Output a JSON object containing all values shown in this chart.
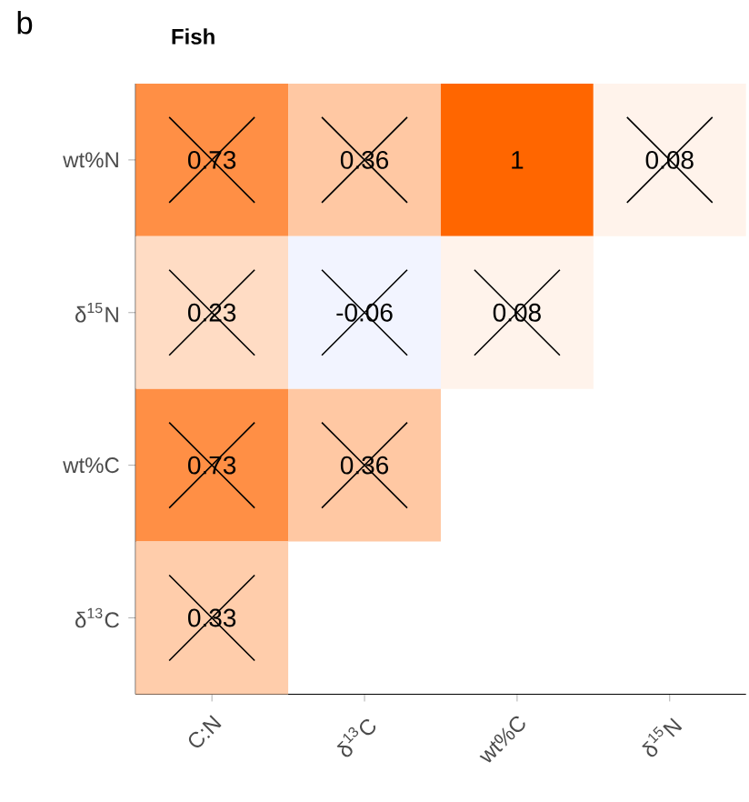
{
  "chart_data": {
    "type": "heatmap",
    "title": "Fish",
    "annotations": [
      "b"
    ],
    "categories": [
      "C:N",
      "δ$^{13}$C",
      "wt%C",
      "δ$^{15}$N"
    ],
    "y_categories": [
      "wt%N",
      "δ$^{15}$N",
      "wt%C",
      "δ$^{13}$C"
    ],
    "cells": [
      [
        0.73,
        0.36,
        1,
        0.08
      ],
      [
        0.23,
        -0.06,
        0.08,
        null
      ],
      [
        0.73,
        0.36,
        null,
        null
      ],
      [
        0.33,
        null,
        null,
        null
      ]
    ],
    "data_labels": true,
    "marker": "cross"
  }
}
